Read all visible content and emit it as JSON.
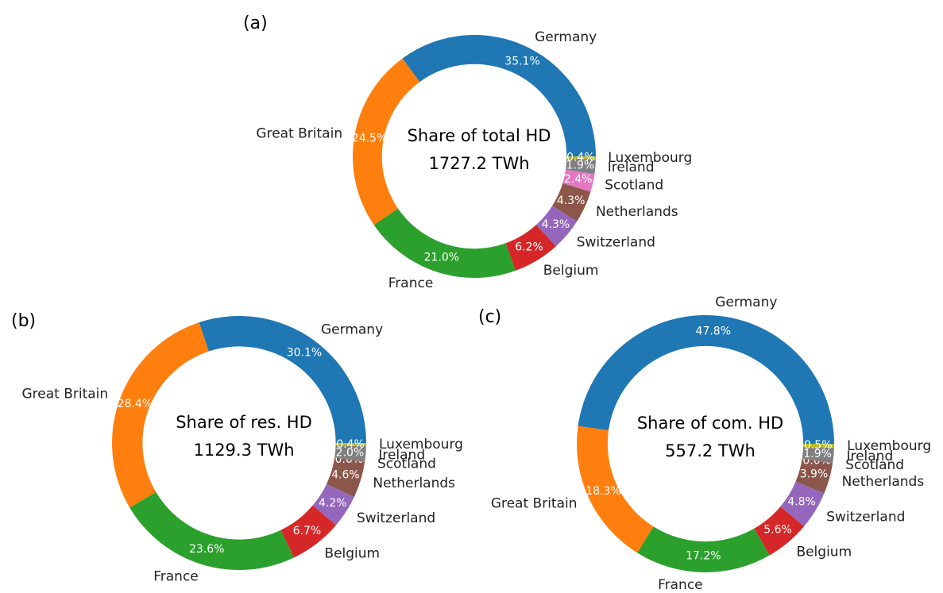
{
  "chart_data": [
    {
      "type": "pie",
      "title": "(a)",
      "center_text": [
        "Share of total HD",
        "1727.2 TWh"
      ],
      "categories": [
        "Germany",
        "Great Britain",
        "France",
        "Belgium",
        "Switzerland",
        "Netherlands",
        "Scotland",
        "Ireland",
        "Luxembourg"
      ],
      "values": [
        35.1,
        24.5,
        21.0,
        6.2,
        4.3,
        4.3,
        2.4,
        1.9,
        0.4
      ],
      "value_labels": [
        "35.1%",
        "24.5%",
        "21.0%",
        "6.2%",
        "4.3%",
        "4.3%",
        "2.4%",
        "1.9%",
        "0.4%"
      ],
      "colors": [
        "#1f77b4",
        "#ff7f0e",
        "#2ca02c",
        "#d62728",
        "#9467bd",
        "#8c564b",
        "#e377c2",
        "#7f7f7f",
        "#bcbd22"
      ]
    },
    {
      "type": "pie",
      "title": "(b)",
      "center_text": [
        "Share of res. HD",
        "1129.3 TWh"
      ],
      "categories": [
        "Germany",
        "Great Britain",
        "France",
        "Belgium",
        "Switzerland",
        "Netherlands",
        "Scotland",
        "Ireland",
        "Luxembourg"
      ],
      "values": [
        30.1,
        28.4,
        23.6,
        6.7,
        4.2,
        4.6,
        0.0,
        2.0,
        0.4
      ],
      "value_labels": [
        "30.1%",
        "28.4%",
        "23.6%",
        "6.7%",
        "4.2%",
        "4.6%",
        "0.0%",
        "2.0%",
        "0.4%"
      ],
      "colors": [
        "#1f77b4",
        "#ff7f0e",
        "#2ca02c",
        "#d62728",
        "#9467bd",
        "#8c564b",
        "#e377c2",
        "#7f7f7f",
        "#bcbd22"
      ]
    },
    {
      "type": "pie",
      "title": "(c)",
      "center_text": [
        "Share of com. HD",
        "557.2 TWh"
      ],
      "categories": [
        "Germany",
        "Great Britain",
        "France",
        "Belgium",
        "Switzerland",
        "Netherlands",
        "Scotland",
        "Ireland",
        "Luxembourg"
      ],
      "values": [
        47.8,
        18.3,
        17.2,
        5.6,
        4.8,
        3.9,
        0.0,
        1.9,
        0.5
      ],
      "value_labels": [
        "47.8%",
        "18.3%",
        "17.2%",
        "5.6%",
        "4.8%",
        "3.9%",
        "0.0%",
        "1.9%",
        "0.5%"
      ],
      "colors": [
        "#1f77b4",
        "#ff7f0e",
        "#2ca02c",
        "#d62728",
        "#9467bd",
        "#8c564b",
        "#e377c2",
        "#7f7f7f",
        "#bcbd22"
      ]
    }
  ]
}
